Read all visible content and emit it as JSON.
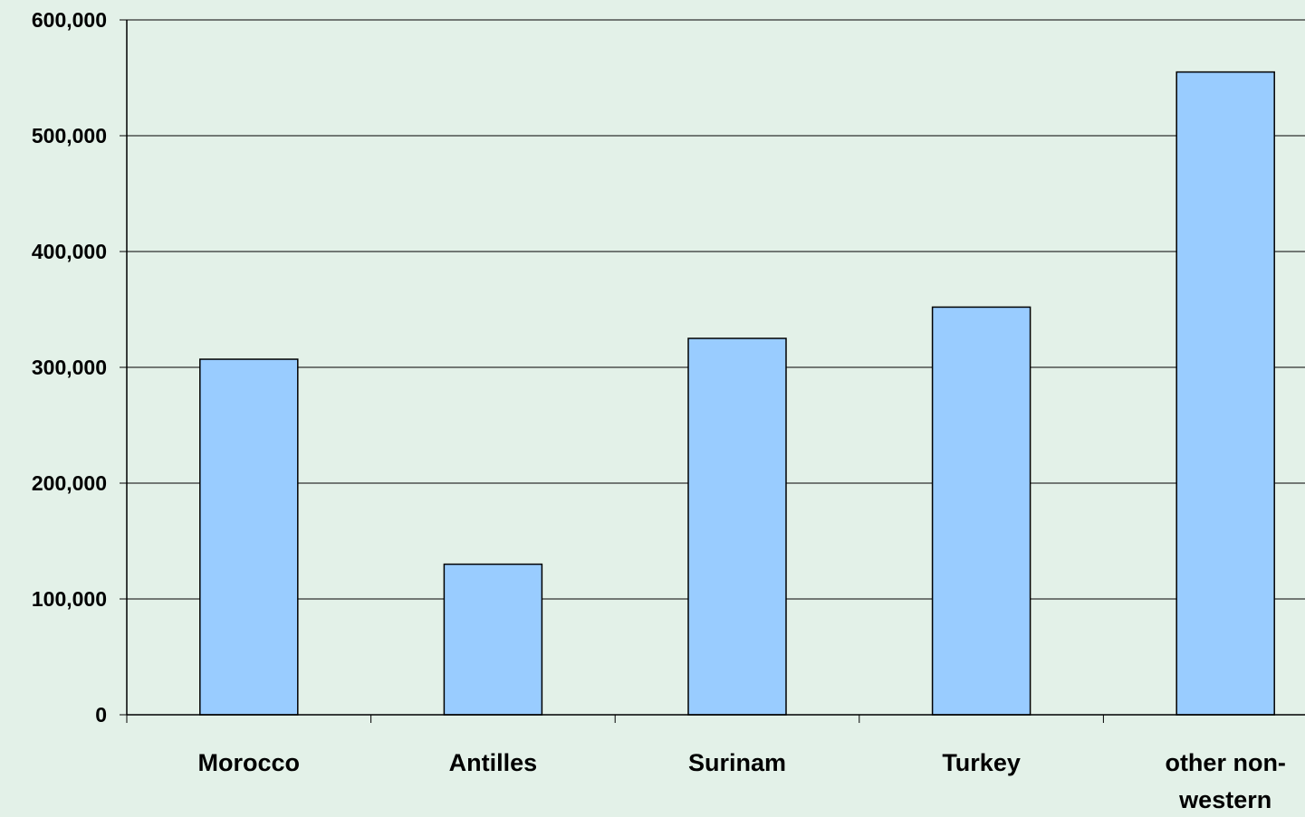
{
  "chart_data": {
    "type": "bar",
    "title": "",
    "xlabel": "",
    "ylabel": "",
    "categories": [
      [
        "Morocco"
      ],
      [
        "Antilles"
      ],
      [
        "Surinam"
      ],
      [
        "Turkey"
      ],
      [
        "other non-",
        "western"
      ]
    ],
    "values": [
      307000,
      130000,
      325000,
      352000,
      555000
    ],
    "ylim": [
      0,
      600000
    ],
    "yticks": [
      0,
      100000,
      200000,
      300000,
      400000,
      500000,
      600000
    ],
    "ytick_labels": [
      "0",
      "100,000",
      "200,000",
      "300,000",
      "400,000",
      "500,000",
      "600,000"
    ],
    "grid": true,
    "legend": "none"
  },
  "colors": {
    "background": "#e3f1e8",
    "bar_fill": "#99ccff",
    "bar_stroke": "#000000",
    "axis": "#000000",
    "grid": "#000000"
  }
}
